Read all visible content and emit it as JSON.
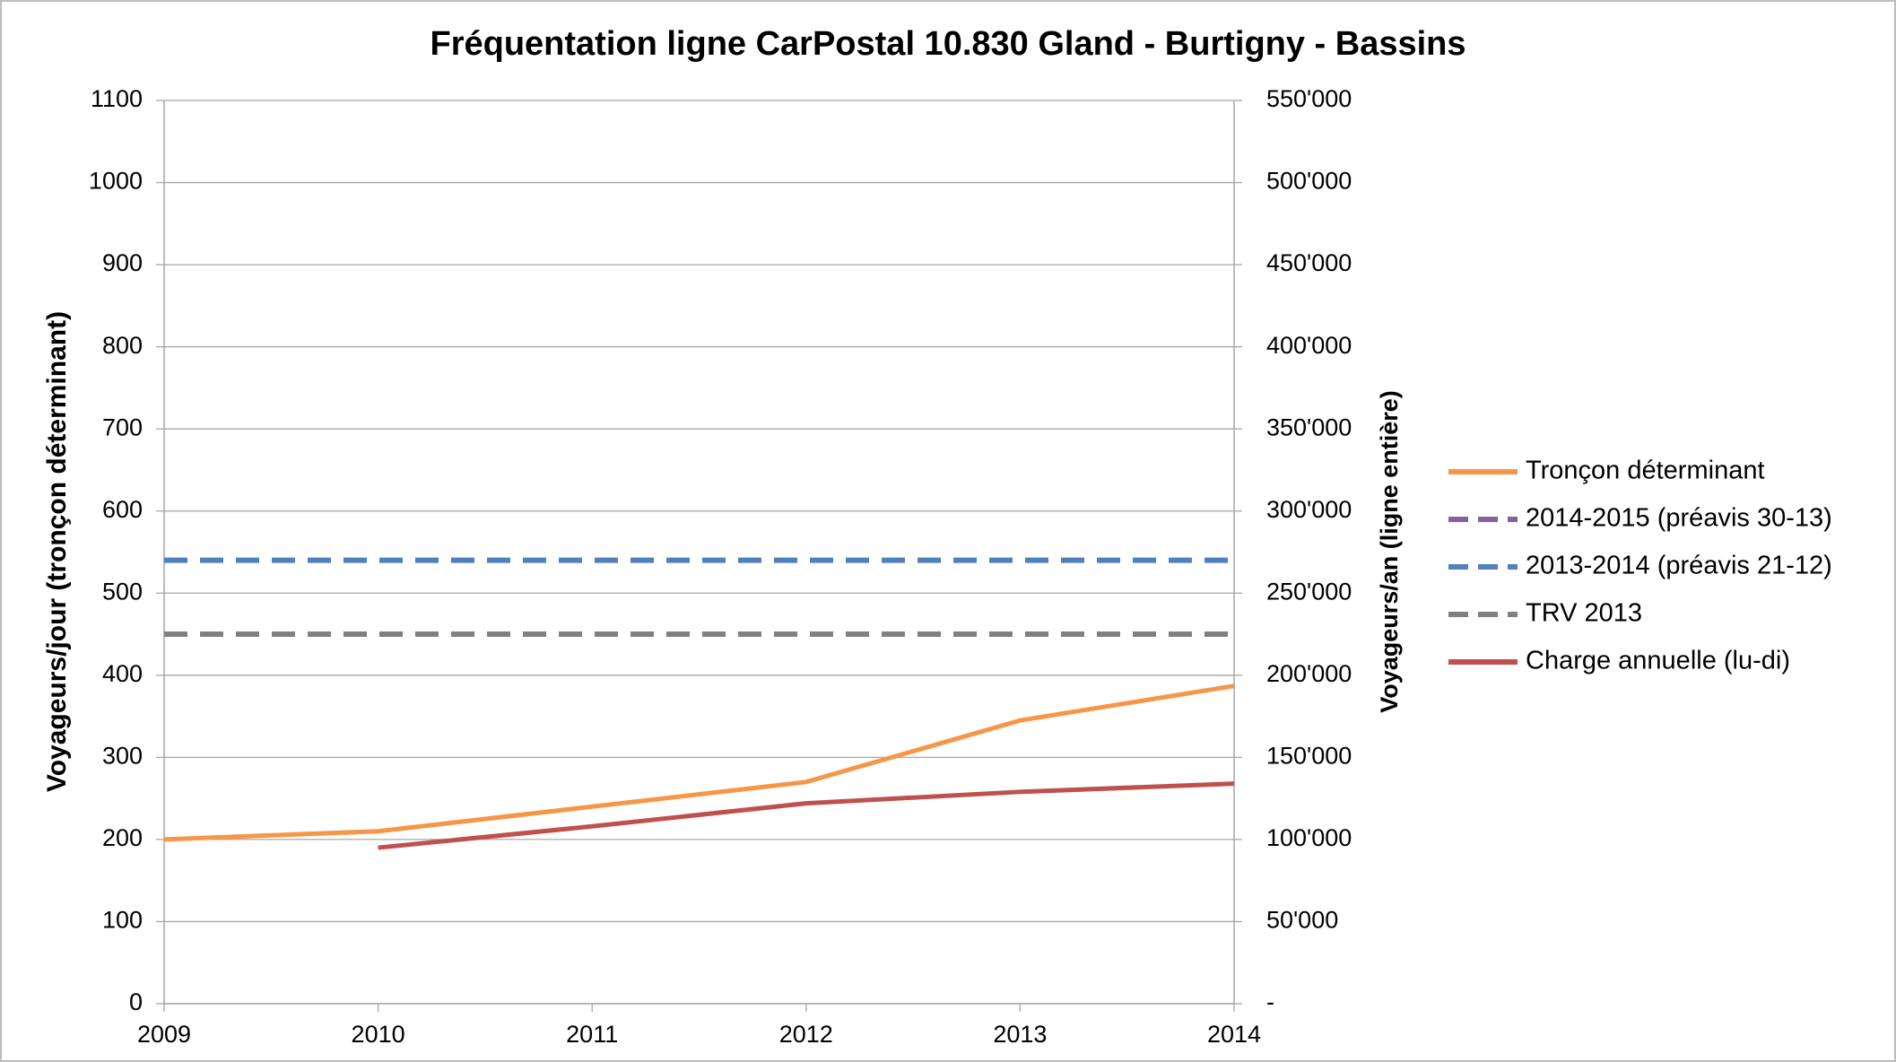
{
  "chart_data": {
    "type": "line",
    "title": "Fréquentation ligne CarPostal 10.830 Gland - Burtigny - Bassins",
    "y_label": "Voyageurs/jour (tronçon déterminant)",
    "y2_label": "Voyageurs/an (ligne entière)",
    "x": [
      2009,
      2010,
      2011,
      2012,
      2013,
      2014
    ],
    "xlim": [
      2009,
      2014
    ],
    "xticks": [
      2009,
      2010,
      2011,
      2012,
      2013,
      2014
    ],
    "ylim": [
      0,
      1100
    ],
    "yticks": [
      0,
      100,
      200,
      300,
      400,
      500,
      600,
      700,
      800,
      900,
      1000,
      1100
    ],
    "y2lim": [
      0,
      550000
    ],
    "y2ticks": [
      {
        "value": 0,
        "label": "-"
      },
      {
        "value": 50000,
        "label": "50'000"
      },
      {
        "value": 100000,
        "label": "100'000"
      },
      {
        "value": 150000,
        "label": "150'000"
      },
      {
        "value": 200000,
        "label": "200'000"
      },
      {
        "value": 250000,
        "label": "250'000"
      },
      {
        "value": 300000,
        "label": "300'000"
      },
      {
        "value": 350000,
        "label": "350'000"
      },
      {
        "value": 400000,
        "label": "400'000"
      },
      {
        "value": 450000,
        "label": "450'000"
      },
      {
        "value": 500000,
        "label": "500'000"
      },
      {
        "value": 550000,
        "label": "550'000"
      }
    ],
    "grid": true,
    "legend": "right",
    "series": [
      {
        "name": "Tronçon déterminant",
        "color": "#F79646",
        "dashed": false,
        "values": [
          200,
          210,
          240,
          270,
          345,
          387
        ]
      },
      {
        "name": "2014-2015 (préavis 30-13)",
        "color": "#8064A2",
        "dashed": true,
        "values": [
          null,
          null,
          null,
          null,
          null,
          null
        ]
      },
      {
        "name": "2013-2014 (préavis 21-12)",
        "color": "#4F81BD",
        "dashed": true,
        "values": [
          540,
          540,
          540,
          540,
          540,
          540
        ]
      },
      {
        "name": "TRV 2013",
        "color": "#808080",
        "dashed": true,
        "values": [
          450,
          450,
          450,
          450,
          450,
          450
        ]
      },
      {
        "name": "Charge annuelle (lu-di)",
        "color": "#C0504D",
        "dashed": false,
        "axis": "y2",
        "values": [
          null,
          95000,
          108000,
          122000,
          129000,
          134000
        ]
      }
    ]
  }
}
